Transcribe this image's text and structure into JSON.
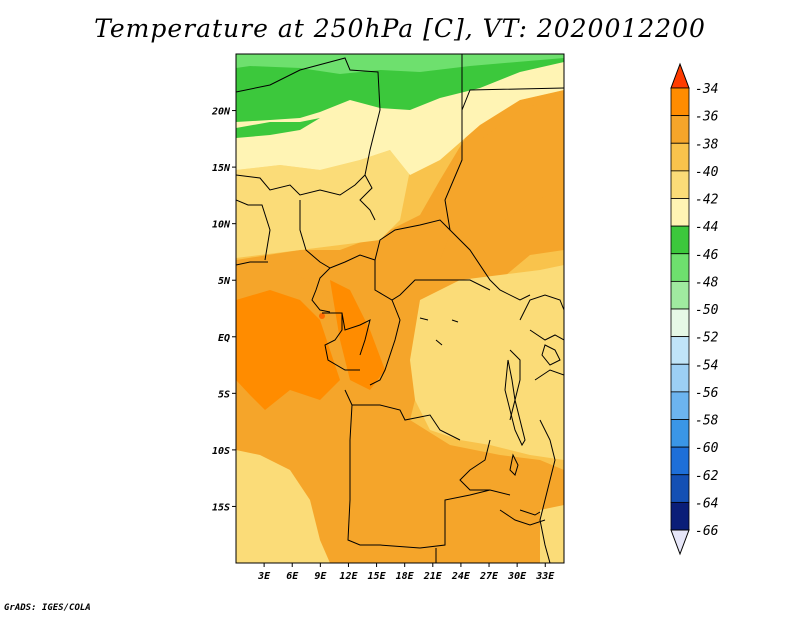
{
  "title": "Temperature at 250hPa [C], VT: 2020012200",
  "credit": "GrADS: IGES/COLA",
  "lat_labels": [
    "20N",
    "15N",
    "10N",
    "5N",
    "EQ",
    "5S",
    "10S",
    "15S"
  ],
  "lat_values": [
    20,
    15,
    10,
    5,
    0,
    -5,
    -10,
    -15
  ],
  "lon_labels": [
    "3E",
    "6E",
    "9E",
    "12E",
    "15E",
    "18E",
    "21E",
    "24E",
    "27E",
    "30E",
    "33E"
  ],
  "lon_values": [
    3,
    6,
    9,
    12,
    15,
    18,
    21,
    24,
    27,
    30,
    33
  ],
  "extent": {
    "lon_min": 0,
    "lon_max": 35,
    "lat_min": -20,
    "lat_max": 25
  },
  "colorbar": {
    "labels": [
      "-34",
      "-36",
      "-38",
      "-40",
      "-42",
      "-44",
      "-46",
      "-48",
      "-50",
      "-52",
      "-54",
      "-56",
      "-58",
      "-60",
      "-62",
      "-64",
      "-66"
    ],
    "colors": [
      "#ff6a00",
      "#ff8c00",
      "#f5a52a",
      "#f9c34c",
      "#fbdc78",
      "#fff4b4",
      "#3cc83c",
      "#6ee06e",
      "#a0eaa0",
      "#e6f8e6",
      "#c0e4f8",
      "#9ccff4",
      "#6cb4ef",
      "#3a96e6",
      "#1e6fd8",
      "#1450b4",
      "#0a1e78"
    ],
    "tip_top": "#ff3c00",
    "tip_bottom": "#e6e6f8"
  }
}
